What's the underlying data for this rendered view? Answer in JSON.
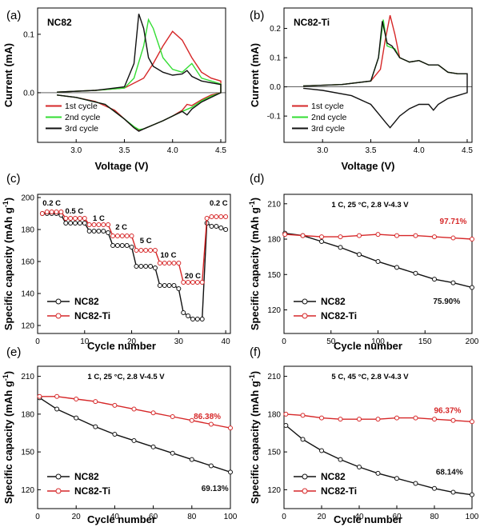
{
  "colors": {
    "black": "#111111",
    "red": "#d62728",
    "green": "#33dd33"
  },
  "chart_data": [
    {
      "id": "a",
      "type": "line",
      "panel_label": "(a)",
      "sample": "NC82",
      "xlabel": "Voltage (V)",
      "ylabel": "Current (mA)",
      "xlim": [
        2.6,
        4.55
      ],
      "ylim": [
        -0.085,
        0.145
      ],
      "xticks": [
        3.0,
        3.5,
        4.0,
        4.5
      ],
      "yticks": [
        0.0,
        0.1
      ],
      "legend_position": "bottom-left",
      "series": [
        {
          "name": "1st cycle",
          "color": "#d62728",
          "x": [
            2.8,
            3.2,
            3.5,
            3.7,
            3.8,
            3.9,
            4.0,
            4.1,
            4.2,
            4.3,
            4.4,
            4.5,
            4.5,
            4.4,
            4.3,
            4.2,
            4.15,
            4.1,
            4.0,
            3.9,
            3.8,
            3.7,
            3.65,
            3.6,
            3.5,
            3.4,
            3.2,
            3.0,
            2.8
          ],
          "y": [
            0.001,
            0.004,
            0.008,
            0.025,
            0.05,
            0.08,
            0.105,
            0.09,
            0.06,
            0.035,
            0.025,
            0.02,
            0.0,
            -0.004,
            -0.012,
            -0.022,
            -0.02,
            -0.03,
            -0.04,
            -0.048,
            -0.055,
            -0.062,
            -0.065,
            -0.06,
            -0.045,
            -0.03,
            -0.015,
            -0.008,
            -0.004
          ]
        },
        {
          "name": "2nd cycle",
          "color": "#33dd33",
          "x": [
            2.8,
            3.2,
            3.5,
            3.6,
            3.7,
            3.75,
            3.8,
            3.9,
            4.0,
            4.1,
            4.2,
            4.3,
            4.4,
            4.5,
            4.5,
            4.4,
            4.3,
            4.2,
            4.1,
            4.0,
            3.9,
            3.8,
            3.7,
            3.65,
            3.6,
            3.5,
            3.3,
            3.0,
            2.8
          ],
          "y": [
            0.001,
            0.004,
            0.008,
            0.025,
            0.08,
            0.125,
            0.11,
            0.06,
            0.04,
            0.035,
            0.05,
            0.025,
            0.02,
            0.015,
            0.0,
            -0.006,
            -0.014,
            -0.025,
            -0.032,
            -0.04,
            -0.048,
            -0.055,
            -0.062,
            -0.063,
            -0.058,
            -0.045,
            -0.02,
            -0.008,
            -0.004
          ]
        },
        {
          "name": "3rd cycle",
          "color": "#111111",
          "x": [
            2.8,
            3.2,
            3.5,
            3.6,
            3.65,
            3.7,
            3.75,
            3.8,
            3.9,
            4.0,
            4.1,
            4.15,
            4.2,
            4.3,
            4.4,
            4.5,
            4.5,
            4.4,
            4.3,
            4.2,
            4.15,
            4.1,
            4.0,
            3.9,
            3.8,
            3.7,
            3.65,
            3.6,
            3.5,
            3.3,
            3.0,
            2.8
          ],
          "y": [
            0.001,
            0.004,
            0.01,
            0.05,
            0.135,
            0.11,
            0.06,
            0.045,
            0.035,
            0.03,
            0.032,
            0.038,
            0.028,
            0.02,
            0.017,
            0.014,
            0.0,
            -0.008,
            -0.016,
            -0.028,
            -0.038,
            -0.032,
            -0.04,
            -0.048,
            -0.055,
            -0.062,
            -0.066,
            -0.06,
            -0.045,
            -0.02,
            -0.008,
            -0.004
          ]
        }
      ]
    },
    {
      "id": "b",
      "type": "line",
      "panel_label": "(b)",
      "sample": "NC82-Ti",
      "xlabel": "Voltage (V)",
      "ylabel": "Current (mA)",
      "xlim": [
        2.6,
        4.55
      ],
      "ylim": [
        -0.19,
        0.27
      ],
      "xticks": [
        3.0,
        3.5,
        4.0,
        4.5
      ],
      "yticks": [
        -0.1,
        0.0,
        0.1,
        0.2
      ],
      "legend_position": "bottom-left",
      "series": [
        {
          "name": "1st cycle",
          "color": "#d62728",
          "x": [
            2.8,
            3.2,
            3.5,
            3.6,
            3.65,
            3.7,
            3.75,
            3.8,
            3.9,
            4.0,
            4.1,
            4.2,
            4.3,
            4.4,
            4.5
          ],
          "y": [
            0.003,
            0.008,
            0.02,
            0.06,
            0.16,
            0.245,
            0.18,
            0.1,
            0.085,
            0.09,
            0.075,
            0.075,
            0.05,
            0.045,
            0.045
          ]
        },
        {
          "name": "2nd cycle",
          "color": "#33dd33",
          "x": [
            2.8,
            3.2,
            3.5,
            3.58,
            3.63,
            3.67,
            3.75,
            3.8,
            3.9,
            4.0,
            4.1,
            4.2,
            4.3,
            4.4,
            4.5
          ],
          "y": [
            0.003,
            0.008,
            0.02,
            0.1,
            0.23,
            0.14,
            0.13,
            0.1,
            0.085,
            0.09,
            0.075,
            0.075,
            0.05,
            0.045,
            0.045
          ]
        },
        {
          "name": "3rd cycle",
          "color": "#111111",
          "x": [
            2.8,
            3.2,
            3.5,
            3.58,
            3.62,
            3.67,
            3.72,
            3.8,
            3.9,
            4.0,
            4.1,
            4.2,
            4.3,
            4.4,
            4.5,
            4.5,
            4.4,
            4.3,
            4.2,
            4.15,
            4.1,
            4.0,
            3.9,
            3.8,
            3.75,
            3.7,
            3.65,
            3.6,
            3.5,
            3.3,
            3.0,
            2.8
          ],
          "y": [
            0.003,
            0.008,
            0.02,
            0.1,
            0.225,
            0.15,
            0.14,
            0.1,
            0.085,
            0.09,
            0.075,
            0.075,
            0.05,
            0.045,
            0.045,
            -0.02,
            -0.03,
            -0.04,
            -0.06,
            -0.08,
            -0.06,
            -0.06,
            -0.075,
            -0.1,
            -0.12,
            -0.14,
            -0.12,
            -0.1,
            -0.06,
            -0.03,
            -0.012,
            -0.005
          ]
        }
      ]
    },
    {
      "id": "c",
      "type": "line",
      "panel_label": "(c)",
      "xlabel": "Cycle number",
      "ylabel": "Specific capacity (mAh g",
      "ylabel_sup": "-1",
      "ylabel_end": ")",
      "xlim": [
        0,
        41
      ],
      "ylim": [
        115,
        202
      ],
      "xticks": [
        0,
        10,
        20,
        30,
        40
      ],
      "yticks": [
        120,
        140,
        160,
        180,
        200
      ],
      "legend_position": "bottom-left",
      "rate_labels": [
        {
          "text": "0.2 C",
          "x": 3,
          "y": 195
        },
        {
          "text": "0.5 C",
          "x": 7.8,
          "y": 190
        },
        {
          "text": "1 C",
          "x": 13,
          "y": 185.5
        },
        {
          "text": "2 C",
          "x": 17.8,
          "y": 180
        },
        {
          "text": "5 C",
          "x": 23,
          "y": 171.5
        },
        {
          "text": "10 C",
          "x": 27.8,
          "y": 162.5
        },
        {
          "text": "20 C",
          "x": 33,
          "y": 149.5
        },
        {
          "text": "0.2 C",
          "x": 38.5,
          "y": 195
        }
      ],
      "series": [
        {
          "name": "NC82",
          "color": "#111111",
          "marker": "circle",
          "x": [
            1,
            2,
            3,
            4,
            5,
            6,
            7,
            8,
            9,
            10,
            11,
            12,
            13,
            14,
            15,
            16,
            17,
            18,
            19,
            20,
            21,
            22,
            23,
            24,
            25,
            26,
            27,
            28,
            29,
            30,
            31,
            32,
            33,
            34,
            35,
            36,
            37,
            38,
            39,
            40
          ],
          "y": [
            190,
            190,
            190,
            190,
            189,
            184,
            184,
            184,
            184,
            184,
            179,
            179,
            179,
            179,
            178,
            170,
            170,
            170,
            170,
            169,
            157,
            157,
            157,
            157,
            156,
            145,
            145,
            145,
            145,
            143,
            128,
            126,
            124,
            124,
            124,
            184,
            182,
            182,
            181,
            180
          ]
        },
        {
          "name": "NC82-Ti",
          "color": "#d62728",
          "marker": "circle",
          "x": [
            1,
            2,
            3,
            4,
            5,
            6,
            7,
            8,
            9,
            10,
            11,
            12,
            13,
            14,
            15,
            16,
            17,
            18,
            19,
            20,
            21,
            22,
            23,
            24,
            25,
            26,
            27,
            28,
            29,
            30,
            31,
            32,
            33,
            34,
            35,
            36,
            37,
            38,
            39,
            40
          ],
          "y": [
            190,
            191,
            191,
            191,
            191,
            187,
            187,
            187,
            187,
            187,
            183,
            183,
            183,
            183,
            183,
            176,
            176,
            176,
            176,
            176,
            167,
            167,
            167,
            167,
            167,
            159,
            159,
            159,
            159,
            159,
            147,
            147,
            147,
            147,
            147,
            187,
            188,
            188,
            188,
            188
          ]
        }
      ]
    },
    {
      "id": "d",
      "type": "line",
      "panel_label": "(d)",
      "condition": "1 C, 25 °C, 2.8 V-4.3 V",
      "xlabel": "Cycle number",
      "ylabel": "Specific capacity (mAh g",
      "ylabel_sup": "-1",
      "ylabel_end": ")",
      "xlim": [
        0,
        200
      ],
      "ylim": [
        100,
        218
      ],
      "xticks": [
        0,
        50,
        100,
        150,
        200
      ],
      "yticks": [
        120,
        150,
        180,
        210
      ],
      "legend_position": "bottom-left",
      "retention_labels": [
        {
          "text": "97.71%",
          "series": "NC82-Ti",
          "color": "#d62728",
          "x": 180,
          "y": 193
        },
        {
          "text": "75.90%",
          "series": "NC82",
          "color": "#111111",
          "x": 173,
          "y": 125
        }
      ],
      "series": [
        {
          "name": "NC82",
          "color": "#111111",
          "marker": "circle",
          "x": [
            1,
            20,
            40,
            60,
            80,
            100,
            120,
            140,
            160,
            180,
            200
          ],
          "y": [
            185,
            183,
            178,
            173,
            167,
            161,
            156,
            151,
            146,
            143,
            139
          ]
        },
        {
          "name": "NC82-Ti",
          "color": "#d62728",
          "marker": "circle",
          "x": [
            1,
            20,
            40,
            60,
            80,
            100,
            120,
            140,
            160,
            180,
            200
          ],
          "y": [
            184,
            183,
            182,
            182,
            183,
            184,
            183,
            183,
            182,
            181,
            180
          ]
        }
      ]
    },
    {
      "id": "e",
      "type": "line",
      "panel_label": "(e)",
      "condition": "1 C, 25 °C, 2.8 V-4.5 V",
      "xlabel": "Cycle number",
      "ylabel": "Specific capacity (mAh g",
      "ylabel_sup": "-1",
      "ylabel_end": ")",
      "xlim": [
        0,
        100
      ],
      "ylim": [
        105,
        218
      ],
      "xticks": [
        0,
        20,
        40,
        60,
        80,
        100
      ],
      "yticks": [
        120,
        150,
        180,
        210
      ],
      "legend_position": "bottom-left",
      "retention_labels": [
        {
          "text": "86.38%",
          "series": "NC82-Ti",
          "color": "#d62728",
          "x": 88,
          "y": 176
        },
        {
          "text": "69.13%",
          "series": "NC82",
          "color": "#111111",
          "x": 92,
          "y": 119
        }
      ],
      "series": [
        {
          "name": "NC82",
          "color": "#111111",
          "marker": "circle",
          "x": [
            1,
            10,
            20,
            30,
            40,
            50,
            60,
            70,
            80,
            90,
            100
          ],
          "y": [
            193,
            184,
            177,
            170,
            164,
            159,
            154,
            149,
            144,
            139,
            134
          ]
        },
        {
          "name": "NC82-Ti",
          "color": "#d62728",
          "marker": "circle",
          "x": [
            1,
            10,
            20,
            30,
            40,
            50,
            60,
            70,
            80,
            90,
            100
          ],
          "y": [
            194,
            194,
            192,
            190,
            187,
            184,
            181,
            178,
            175,
            172,
            169
          ]
        }
      ]
    },
    {
      "id": "f",
      "type": "line",
      "panel_label": "(f)",
      "condition": "5 C, 45 °C, 2.8 V-4.3 V",
      "xlabel": "Cycle number",
      "ylabel": "Specific capacity (mAh g",
      "ylabel_sup": "-1",
      "ylabel_end": ")",
      "xlim": [
        0,
        100
      ],
      "ylim": [
        105,
        218
      ],
      "xticks": [
        0,
        20,
        40,
        60,
        80,
        100
      ],
      "yticks": [
        120,
        150,
        180,
        210
      ],
      "legend_position": "bottom-left",
      "retention_labels": [
        {
          "text": "96.37%",
          "series": "NC82-Ti",
          "color": "#d62728",
          "x": 87,
          "y": 181
        },
        {
          "text": "68.14%",
          "series": "NC82",
          "color": "#111111",
          "x": 88,
          "y": 132
        }
      ],
      "series": [
        {
          "name": "NC82",
          "color": "#111111",
          "marker": "circle",
          "x": [
            1,
            10,
            20,
            30,
            40,
            50,
            60,
            70,
            80,
            90,
            100
          ],
          "y": [
            171,
            160,
            151,
            144,
            138,
            133,
            129,
            125,
            121,
            118,
            116
          ]
        },
        {
          "name": "NC82-Ti",
          "color": "#d62728",
          "marker": "circle",
          "x": [
            1,
            10,
            20,
            30,
            40,
            50,
            60,
            70,
            80,
            90,
            100
          ],
          "y": [
            180,
            179,
            177,
            176,
            176,
            176,
            177,
            177,
            176,
            175,
            174
          ]
        }
      ]
    }
  ]
}
